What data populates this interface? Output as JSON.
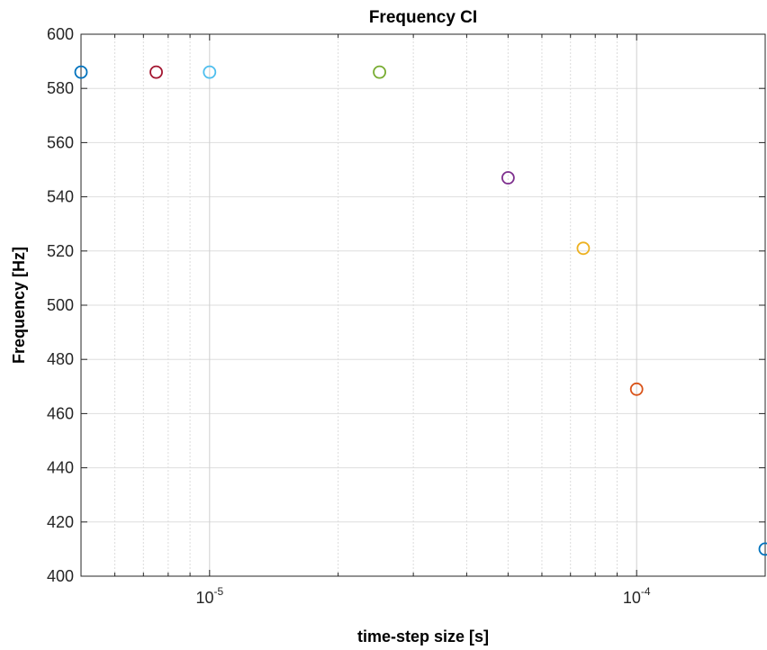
{
  "chart_data": {
    "type": "scatter",
    "title": "Frequency CI",
    "xlabel": "time-step size [s]",
    "ylabel": "Frequency [Hz]",
    "xscale": "log",
    "xlim": [
      5e-06,
      0.0002
    ],
    "ylim": [
      400,
      600
    ],
    "yticks": [
      400,
      420,
      440,
      460,
      480,
      500,
      520,
      540,
      560,
      580,
      600
    ],
    "xticks": [
      {
        "value": 1e-05,
        "base": "10",
        "exp": "-5"
      },
      {
        "value": 0.0001,
        "base": "10",
        "exp": "-4"
      }
    ],
    "grid": true,
    "minor_grid": true,
    "marker": "circle-open",
    "points": [
      {
        "x": 5e-06,
        "y": 586,
        "color": "#0072BD"
      },
      {
        "x": 7.5e-06,
        "y": 586,
        "color": "#A2142F"
      },
      {
        "x": 1e-05,
        "y": 586,
        "color": "#4DBEEE"
      },
      {
        "x": 2.5e-05,
        "y": 586,
        "color": "#77AC30"
      },
      {
        "x": 5e-05,
        "y": 547,
        "color": "#7E2F8E"
      },
      {
        "x": 7.5e-05,
        "y": 521,
        "color": "#EDB120"
      },
      {
        "x": 0.0001,
        "y": 469,
        "color": "#D95319"
      },
      {
        "x": 0.0002,
        "y": 410,
        "color": "#0072BD"
      }
    ]
  }
}
